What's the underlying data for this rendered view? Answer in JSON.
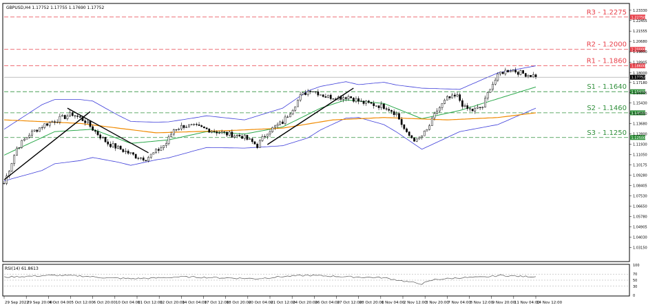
{
  "header": {
    "symbol_line": "GBPUSD,H4  1.17752 1.17755 1.17690 1.17752"
  },
  "rsi_header": "RSI(14) 61.8613",
  "colors": {
    "candle": "#000000",
    "upper_band": "#3b3bd9",
    "ma_fast": "#2aa84a",
    "ma_slow": "#f08a00",
    "resistance": "#e8404a",
    "support": "#2f8f3a",
    "trendline": "#000000"
  },
  "chart_data": [
    {
      "type": "candlestick",
      "ylim": [
        1.02,
        1.2385
      ],
      "y_ticks": [
        "1.23330",
        "1.22455",
        "1.21555",
        "1.20680",
        "1.19800",
        "1.18905",
        "1.18000",
        "1.17180",
        "1.16305",
        "1.15430",
        "1.14550",
        "1.13680",
        "1.12800",
        "1.11930",
        "1.11050",
        "1.10175",
        "1.09280",
        "1.08405",
        "1.07530",
        "1.06650",
        "1.05780",
        "1.04905",
        "1.04030",
        "1.03150"
      ],
      "x_ticks": [
        "29 Sep 2022",
        "29 Sep 20:00",
        "4 Oct 04:00",
        "5 Oct 12:00",
        "6 Oct 20:00",
        "10 Oct 04:00",
        "11 Oct 12:00",
        "12 Oct 20:00",
        "14 Oct 04:00",
        "17 Oct 12:00",
        "18 Oct 20:00",
        "20 Oct 04:00",
        "21 Oct 12:00",
        "24 Oct 20:00",
        "26 Oct 04:00",
        "27 Oct 12:00",
        "28 Oct 20:00",
        "1 Nov 04:00",
        "2 Nov 12:00",
        "3 Nov 20:00",
        "7 Nov 04:00",
        "8 Nov 12:00",
        "9 Nov 20:00",
        "11 Nov 04:00",
        "14 Nov 12:00"
      ],
      "current_price_label": "1.17752",
      "levels": [
        {
          "name": "R3",
          "label": "R3 - 1.2275",
          "value": 1.2275,
          "axis_label": "1.22750",
          "kind": "resistance"
        },
        {
          "name": "R2",
          "label": "R2 - 1.2000",
          "value": 1.2,
          "axis_label": "1.20000",
          "kind": "resistance"
        },
        {
          "name": "R1",
          "label": "R1 - 1.1860",
          "value": 1.186,
          "axis_label": "1.18600",
          "kind": "resistance"
        },
        {
          "name": "S1",
          "label": "S1 - 1.1640",
          "value": 1.164,
          "axis_label": "1.16400",
          "kind": "support"
        },
        {
          "name": "S2",
          "label": "S2 - 1.1460",
          "value": 1.146,
          "axis_label": "1.14600",
          "kind": "support"
        },
        {
          "name": "S3",
          "label": "S3 - 1.1250",
          "value": 1.125,
          "axis_label": "1.12500",
          "kind": "support"
        }
      ],
      "close_anchors": [
        [
          0,
          1.086
        ],
        [
          5,
          1.116
        ],
        [
          10,
          1.128
        ],
        [
          16,
          1.136
        ],
        [
          22,
          1.141
        ],
        [
          27,
          1.145
        ],
        [
          32,
          1.139
        ],
        [
          36,
          1.13
        ],
        [
          41,
          1.12
        ],
        [
          47,
          1.114
        ],
        [
          52,
          1.109
        ],
        [
          56,
          1.107
        ],
        [
          60,
          1.113
        ],
        [
          64,
          1.12
        ],
        [
          67,
          1.132
        ],
        [
          71,
          1.135
        ],
        [
          76,
          1.134
        ],
        [
          82,
          1.131
        ],
        [
          88,
          1.128
        ],
        [
          94,
          1.126
        ],
        [
          98,
          1.121
        ],
        [
          100,
          1.118
        ],
        [
          104,
          1.13
        ],
        [
          110,
          1.138
        ],
        [
          114,
          1.15
        ],
        [
          117,
          1.16
        ],
        [
          121,
          1.166
        ],
        [
          127,
          1.16
        ],
        [
          132,
          1.159
        ],
        [
          136,
          1.16
        ],
        [
          141,
          1.155
        ],
        [
          146,
          1.153
        ],
        [
          151,
          1.151
        ],
        [
          155,
          1.145
        ],
        [
          159,
          1.128
        ],
        [
          163,
          1.122
        ],
        [
          167,
          1.131
        ],
        [
          171,
          1.148
        ],
        [
          175,
          1.158
        ],
        [
          179,
          1.16
        ],
        [
          182,
          1.15
        ],
        [
          185,
          1.148
        ],
        [
          189,
          1.151
        ],
        [
          192,
          1.168
        ],
        [
          196,
          1.18
        ],
        [
          200,
          1.183
        ],
        [
          204,
          1.18
        ],
        [
          208,
          1.178
        ],
        [
          210,
          1.1775
        ]
      ],
      "ma_slow_anchors": [
        [
          0,
          1.14
        ],
        [
          30,
          1.137
        ],
        [
          60,
          1.129
        ],
        [
          90,
          1.131
        ],
        [
          110,
          1.133
        ],
        [
          130,
          1.14
        ],
        [
          150,
          1.142
        ],
        [
          175,
          1.14
        ],
        [
          195,
          1.142
        ],
        [
          210,
          1.146
        ]
      ],
      "ma_fast_anchors": [
        [
          0,
          1.11
        ],
        [
          20,
          1.13
        ],
        [
          35,
          1.132
        ],
        [
          50,
          1.12
        ],
        [
          65,
          1.123
        ],
        [
          80,
          1.13
        ],
        [
          95,
          1.128
        ],
        [
          110,
          1.134
        ],
        [
          125,
          1.15
        ],
        [
          135,
          1.157
        ],
        [
          150,
          1.154
        ],
        [
          165,
          1.141
        ],
        [
          180,
          1.148
        ],
        [
          195,
          1.158
        ],
        [
          210,
          1.168
        ]
      ],
      "band_width_anchors": [
        [
          0,
          0.022
        ],
        [
          15,
          0.028
        ],
        [
          30,
          0.026
        ],
        [
          45,
          0.02
        ],
        [
          60,
          0.016
        ],
        [
          75,
          0.014
        ],
        [
          95,
          0.012
        ],
        [
          110,
          0.016
        ],
        [
          120,
          0.02
        ],
        [
          140,
          0.014
        ],
        [
          155,
          0.02
        ],
        [
          165,
          0.026
        ],
        [
          180,
          0.018
        ],
        [
          195,
          0.022
        ],
        [
          210,
          0.018
        ]
      ],
      "trendlines": [
        [
          [
            0,
            1.089
          ],
          [
            34,
            1.147
          ]
        ],
        [
          [
            25,
            1.15
          ],
          [
            57,
            1.112
          ]
        ],
        [
          [
            104,
            1.119
          ],
          [
            138,
            1.167
          ]
        ]
      ]
    },
    {
      "type": "line",
      "ylim": [
        0,
        100
      ],
      "y_ticks": [
        "100",
        "70",
        "50",
        "30",
        "0"
      ],
      "rsi_anchors": [
        [
          0,
          60
        ],
        [
          10,
          63
        ],
        [
          20,
          66
        ],
        [
          30,
          64
        ],
        [
          40,
          58
        ],
        [
          50,
          55
        ],
        [
          60,
          57
        ],
        [
          70,
          61
        ],
        [
          80,
          59
        ],
        [
          90,
          57
        ],
        [
          100,
          55
        ],
        [
          110,
          62
        ],
        [
          120,
          66
        ],
        [
          130,
          63
        ],
        [
          140,
          60
        ],
        [
          150,
          58
        ],
        [
          160,
          44
        ],
        [
          165,
          38
        ],
        [
          170,
          52
        ],
        [
          180,
          58
        ],
        [
          190,
          60
        ],
        [
          196,
          66
        ],
        [
          205,
          62
        ],
        [
          210,
          61.86
        ]
      ]
    }
  ]
}
